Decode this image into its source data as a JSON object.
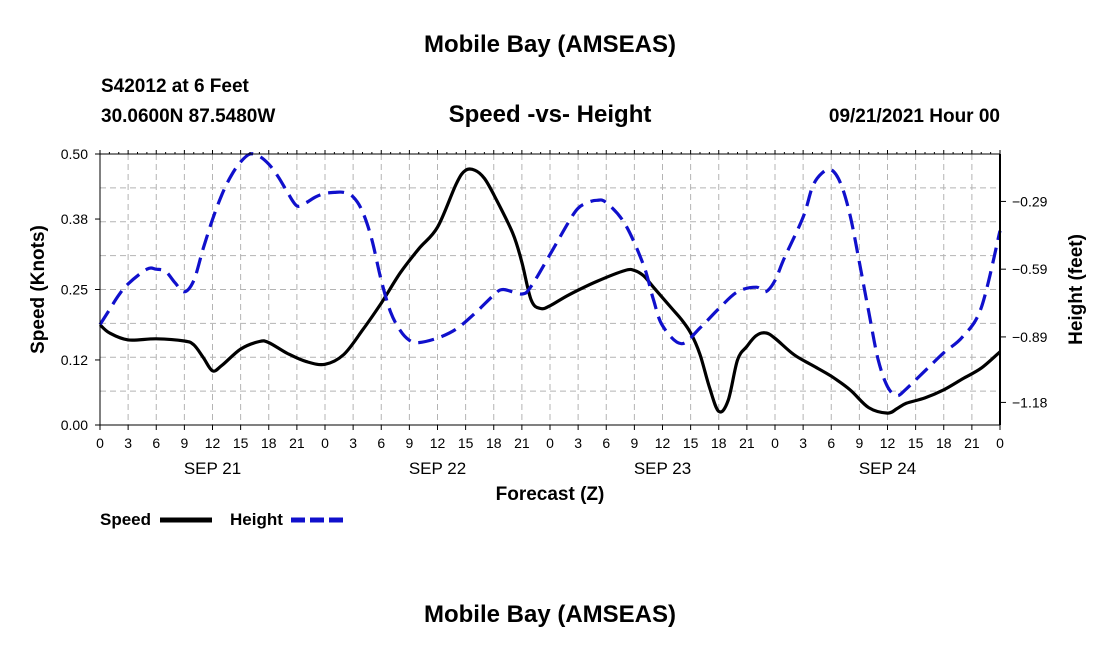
{
  "header": {
    "title_top": "Mobile Bay (AMSEAS)",
    "station": "S42012 at 6 Feet",
    "coords": "30.0600N  87.5480W",
    "subtitle": "Speed -vs- Height",
    "datetime": "09/21/2021 Hour 00",
    "title_bottom": "Mobile Bay (AMSEAS)"
  },
  "legend": {
    "speed_label": "Speed",
    "height_label": "Height"
  },
  "colors": {
    "speed": "#000000",
    "height": "#1010cc",
    "grid": "#b4b4b4"
  },
  "chart_data": {
    "type": "line",
    "title": "Speed -vs- Height",
    "xlabel": "Forecast (Z)",
    "ylabel": "Speed (Knots)",
    "y2label": "Height (feet)",
    "xlim": [
      0,
      96
    ],
    "ylim": [
      0,
      0.5
    ],
    "y2lim": [
      -1.28,
      -0.08
    ],
    "grid": true,
    "x_ticks": [
      0,
      3,
      6,
      9,
      12,
      15,
      18,
      21,
      24,
      27,
      30,
      33,
      36,
      39,
      42,
      45,
      48,
      51,
      54,
      57,
      60,
      63,
      66,
      69,
      72,
      75,
      78,
      81,
      84,
      87,
      90,
      93,
      96
    ],
    "x_tick_labels": [
      "0",
      "3",
      "6",
      "9",
      "12",
      "15",
      "18",
      "21",
      "0",
      "3",
      "6",
      "9",
      "12",
      "15",
      "18",
      "21",
      "0",
      "3",
      "6",
      "9",
      "12",
      "15",
      "18",
      "21",
      "0",
      "3",
      "6",
      "9",
      "12",
      "15",
      "18",
      "21",
      "0"
    ],
    "day_labels": [
      {
        "x": 12,
        "label": "SEP 21"
      },
      {
        "x": 36,
        "label": "SEP 22"
      },
      {
        "x": 60,
        "label": "SEP 23"
      },
      {
        "x": 84,
        "label": "SEP 24"
      }
    ],
    "y_ticks": [
      0.0,
      0.12,
      0.25,
      0.38,
      0.5
    ],
    "y_tick_labels": [
      "0.00",
      "0.12",
      "0.25",
      "0.38",
      "0.50"
    ],
    "y2_ticks": [
      -1.18,
      -0.89,
      -0.59,
      -0.29
    ],
    "y2_tick_labels": [
      "−1.18",
      "−0.89",
      "−0.59",
      "−0.29"
    ],
    "series": [
      {
        "name": "Speed",
        "axis": "left",
        "x": [
          0,
          1,
          3,
          6,
          9,
          10,
          11,
          12,
          13,
          15,
          17,
          18,
          20,
          22,
          24,
          26,
          28,
          30,
          32,
          34,
          36,
          38,
          39,
          40,
          41,
          42,
          44,
          45,
          46,
          47,
          48,
          50,
          53,
          56,
          57,
          58,
          59,
          61,
          62,
          63,
          64,
          65,
          66,
          67,
          68,
          69,
          70,
          71,
          72,
          74,
          76,
          78,
          80,
          82,
          84,
          85,
          86,
          88,
          90,
          92,
          94,
          96
        ],
        "y": [
          0.185,
          0.17,
          0.157,
          0.159,
          0.155,
          0.148,
          0.125,
          0.1,
          0.11,
          0.14,
          0.154,
          0.152,
          0.132,
          0.117,
          0.112,
          0.13,
          0.175,
          0.225,
          0.28,
          0.325,
          0.365,
          0.445,
          0.47,
          0.47,
          0.455,
          0.425,
          0.355,
          0.3,
          0.23,
          0.215,
          0.22,
          0.24,
          0.265,
          0.285,
          0.285,
          0.275,
          0.255,
          0.215,
          0.195,
          0.17,
          0.13,
          0.07,
          0.025,
          0.045,
          0.12,
          0.145,
          0.165,
          0.17,
          0.16,
          0.13,
          0.11,
          0.09,
          0.065,
          0.032,
          0.022,
          0.03,
          0.04,
          0.05,
          0.065,
          0.085,
          0.105,
          0.135
        ]
      },
      {
        "name": "Height",
        "axis": "right",
        "x": [
          0,
          1,
          2,
          3,
          5,
          6,
          7,
          8,
          9,
          10,
          11,
          12,
          13,
          14,
          15,
          16,
          17,
          18,
          19,
          20,
          21,
          22,
          23,
          24,
          25,
          26,
          27,
          28,
          29,
          30,
          31,
          32,
          33,
          34,
          36,
          38,
          40,
          42,
          43,
          45,
          46,
          48,
          50,
          51,
          52,
          53,
          54,
          56,
          58,
          59,
          60,
          62,
          64,
          66,
          68,
          70,
          71,
          72,
          73,
          75,
          76,
          77,
          78,
          79,
          80,
          81,
          82,
          83,
          84,
          85,
          86,
          88,
          90,
          92,
          94,
          96
        ],
        "y": [
          -0.835,
          -0.77,
          -0.705,
          -0.655,
          -0.59,
          -0.59,
          -0.6,
          -0.65,
          -0.69,
          -0.64,
          -0.5,
          -0.37,
          -0.26,
          -0.175,
          -0.115,
          -0.08,
          -0.09,
          -0.125,
          -0.18,
          -0.25,
          -0.31,
          -0.295,
          -0.27,
          -0.255,
          -0.25,
          -0.25,
          -0.27,
          -0.335,
          -0.46,
          -0.64,
          -0.78,
          -0.86,
          -0.905,
          -0.915,
          -0.895,
          -0.855,
          -0.785,
          -0.705,
          -0.68,
          -0.7,
          -0.665,
          -0.525,
          -0.38,
          -0.32,
          -0.295,
          -0.285,
          -0.295,
          -0.39,
          -0.575,
          -0.72,
          -0.84,
          -0.92,
          -0.85,
          -0.765,
          -0.69,
          -0.67,
          -0.69,
          -0.64,
          -0.54,
          -0.36,
          -0.225,
          -0.165,
          -0.15,
          -0.21,
          -0.35,
          -0.56,
          -0.78,
          -0.99,
          -1.11,
          -1.15,
          -1.12,
          -1.04,
          -0.96,
          -0.89,
          -0.76,
          -0.42
        ]
      }
    ]
  }
}
